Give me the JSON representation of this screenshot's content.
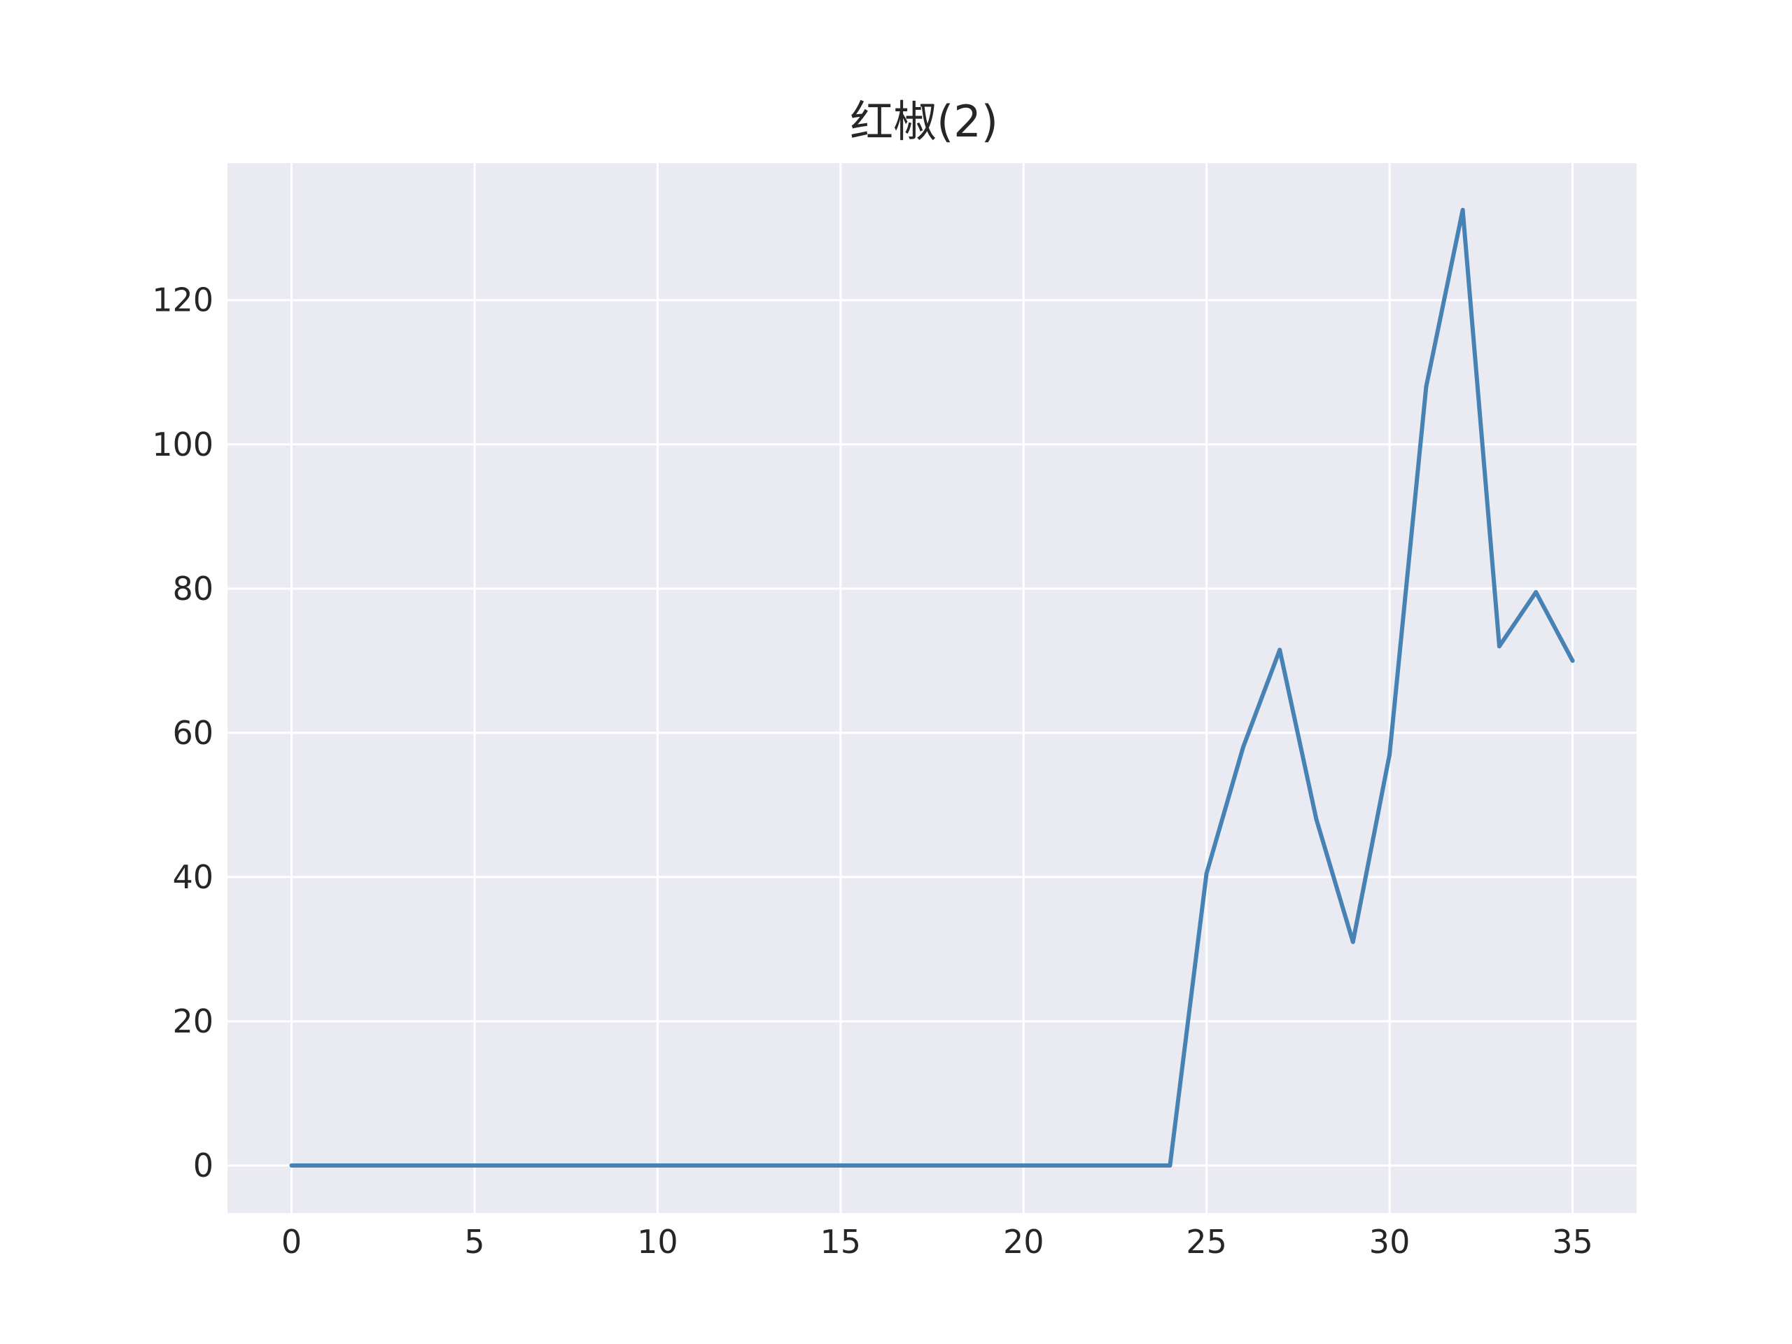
{
  "chart_data": {
    "type": "line",
    "title": "红椒(2)",
    "xlabel": "",
    "ylabel": "",
    "xlim": [
      -1.75,
      36.75
    ],
    "ylim": [
      -6.6,
      139
    ],
    "x_ticks": [
      0,
      5,
      10,
      15,
      20,
      25,
      30,
      35
    ],
    "y_ticks": [
      0,
      20,
      40,
      60,
      80,
      100,
      120
    ],
    "grid": true,
    "legend": "none",
    "series": [
      {
        "x": [
          0,
          1,
          2,
          3,
          4,
          5,
          6,
          7,
          8,
          9,
          10,
          11,
          12,
          13,
          14,
          15,
          16,
          17,
          18,
          19,
          20,
          21,
          22,
          23,
          24,
          25,
          26,
          27,
          28,
          29,
          30,
          31,
          32,
          33,
          34,
          35
        ],
        "values": [
          0,
          0,
          0,
          0,
          0,
          0,
          0,
          0,
          0,
          0,
          0,
          0,
          0,
          0,
          0,
          0,
          0,
          0,
          0,
          0,
          0,
          0,
          0,
          0,
          0,
          40.5,
          58,
          71.5,
          48,
          31,
          57,
          108,
          132.5,
          72,
          79.5,
          70
        ]
      }
    ],
    "colors": {
      "plot_background": "#EAEAF2",
      "grid": "#FFFFFF",
      "line": "#4682B4",
      "text": "#262626"
    }
  }
}
